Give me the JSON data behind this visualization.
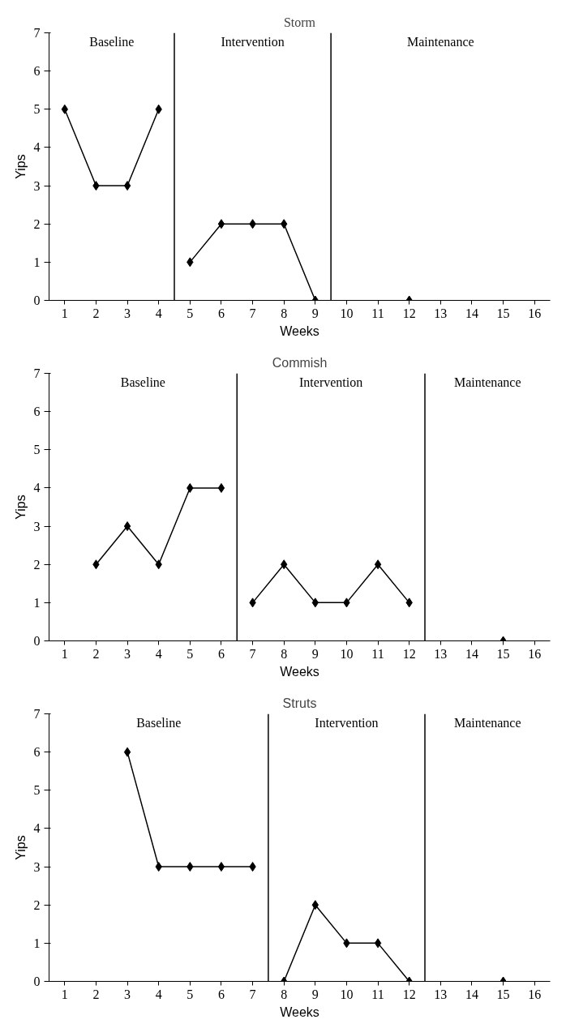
{
  "chart_data": [
    {
      "type": "line",
      "title": "Storm",
      "xlabel": "Weeks",
      "ylabel": "Yips",
      "xlim": [
        0.5,
        16.5
      ],
      "xticks": [
        1,
        2,
        3,
        4,
        5,
        6,
        7,
        8,
        9,
        10,
        11,
        12,
        13,
        14,
        15,
        16
      ],
      "ylim": [
        0,
        7
      ],
      "yticks": [
        0,
        1,
        2,
        3,
        4,
        5,
        6,
        7
      ],
      "marker": "diamond",
      "line_style": "solid",
      "grid": false,
      "series": [
        {
          "color": "#000000",
          "x": [
            1,
            2,
            3,
            4
          ],
          "values": [
            5,
            3,
            3,
            5
          ]
        },
        {
          "color": "#000000",
          "x": [
            5,
            6,
            7,
            8,
            9
          ],
          "values": [
            1,
            2,
            2,
            2,
            0
          ]
        },
        {
          "color": "#000000",
          "x": [
            12
          ],
          "values": [
            0
          ]
        }
      ],
      "ref_lines": [
        {
          "axis": "x",
          "value": 4.5,
          "color": "#000000"
        },
        {
          "axis": "x",
          "value": 9.5,
          "color": "#000000"
        }
      ],
      "annotations": [
        "Baseline",
        "Intervention",
        "Maintenance"
      ]
    },
    {
      "type": "line",
      "title": "Commish",
      "xlabel": "Weeks",
      "ylabel": "Yips",
      "xlim": [
        0.5,
        16.5
      ],
      "xticks": [
        1,
        2,
        3,
        4,
        5,
        6,
        7,
        8,
        9,
        10,
        11,
        12,
        13,
        14,
        15,
        16
      ],
      "ylim": [
        0,
        7
      ],
      "yticks": [
        0,
        1,
        2,
        3,
        4,
        5,
        6,
        7
      ],
      "marker": "diamond",
      "line_style": "solid",
      "grid": false,
      "series": [
        {
          "color": "#000000",
          "x": [
            2,
            3,
            4,
            5,
            6
          ],
          "values": [
            2,
            3,
            2,
            4,
            4
          ]
        },
        {
          "color": "#000000",
          "x": [
            7,
            8,
            9,
            10,
            11,
            12
          ],
          "values": [
            1,
            2,
            1,
            1,
            2,
            1
          ]
        },
        {
          "color": "#000000",
          "x": [
            15
          ],
          "values": [
            0
          ]
        }
      ],
      "ref_lines": [
        {
          "axis": "x",
          "value": 6.5,
          "color": "#000000"
        },
        {
          "axis": "x",
          "value": 12.5,
          "color": "#000000"
        }
      ],
      "annotations": [
        "Baseline",
        "Intervention",
        "Maintenance"
      ]
    },
    {
      "type": "line",
      "title": "Struts",
      "xlabel": "Weeks",
      "ylabel": "Yips",
      "xlim": [
        0.5,
        16.5
      ],
      "xticks": [
        1,
        2,
        3,
        4,
        5,
        6,
        7,
        8,
        9,
        10,
        11,
        12,
        13,
        14,
        15,
        16
      ],
      "ylim": [
        0,
        7
      ],
      "yticks": [
        0,
        1,
        2,
        3,
        4,
        5,
        6,
        7
      ],
      "marker": "diamond",
      "line_style": "solid",
      "grid": false,
      "series": [
        {
          "color": "#000000",
          "x": [
            3,
            4,
            5,
            6,
            7
          ],
          "values": [
            6,
            3,
            3,
            3,
            3
          ]
        },
        {
          "color": "#000000",
          "x": [
            8,
            9,
            10,
            11,
            12
          ],
          "values": [
            0,
            2,
            1,
            1,
            0
          ]
        },
        {
          "color": "#000000",
          "x": [
            15
          ],
          "values": [
            0
          ]
        }
      ],
      "ref_lines": [
        {
          "axis": "x",
          "value": 7.5,
          "color": "#000000"
        },
        {
          "axis": "x",
          "value": 12.5,
          "color": "#000000"
        }
      ],
      "annotations": [
        "Baseline",
        "Intervention",
        "Maintenance"
      ]
    }
  ]
}
